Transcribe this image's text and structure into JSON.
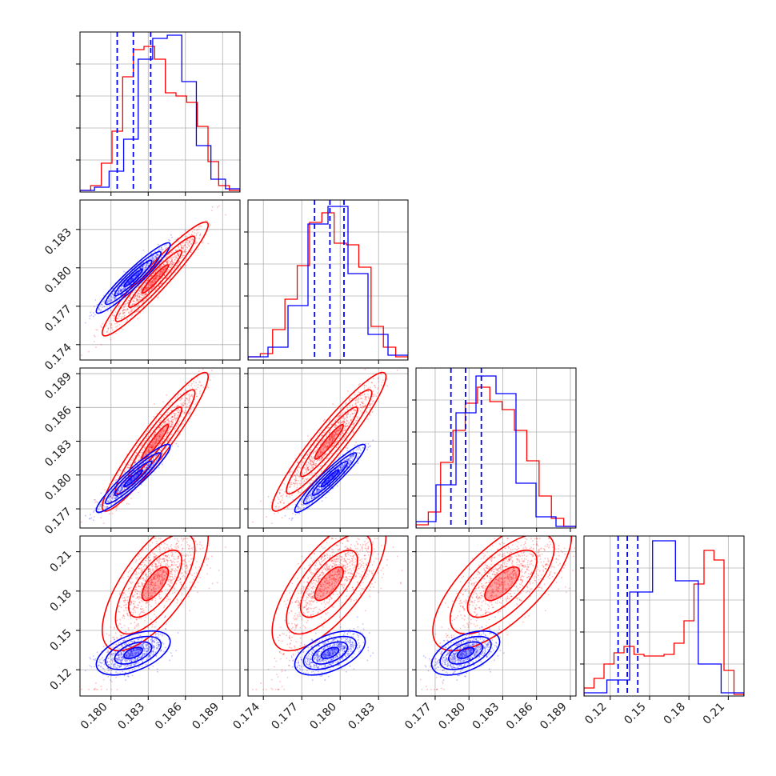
{
  "colors": {
    "series_a": "#ff0000",
    "series_b": "#0000ff",
    "grid": "#b0b0b0",
    "frame": "#000000"
  },
  "chart_data": {
    "type": "scatter",
    "subtype": "corner-plot",
    "grid": true,
    "n_params": 4,
    "series": [
      {
        "color": "#ff0000",
        "means": [
          0.1836,
          0.1792,
          0.183,
          0.185
        ],
        "sds": [
          0.0018,
          0.0019,
          0.0026,
          0.028
        ]
      },
      {
        "color": "#0000ff",
        "means": [
          0.1818,
          0.1792,
          0.1797,
          0.133
        ],
        "sds": [
          0.0012,
          0.0011,
          0.0012,
          0.007
        ]
      }
    ],
    "quantile_lines": [
      [
        0.1805,
        0.1818,
        0.1832
      ],
      [
        0.178,
        0.1792,
        0.1803
      ],
      [
        0.1784,
        0.1797,
        0.1811
      ],
      [
        0.126,
        0.133,
        0.141
      ]
    ],
    "axis_ranges": [
      [
        0.1775,
        0.1904
      ],
      [
        0.1728,
        0.1853
      ],
      [
        0.1753,
        0.1895
      ],
      [
        0.1,
        0.222
      ]
    ],
    "ticks": [
      [
        "0.180",
        "0.183",
        "0.186",
        "0.189"
      ],
      [
        "0.174",
        "0.177",
        "0.180",
        "0.183"
      ],
      [
        "0.177",
        "0.180",
        "0.183",
        "0.186",
        "0.189"
      ],
      [
        "0.12",
        "0.15",
        "0.18",
        "0.21"
      ]
    ],
    "hist_red": [
      [
        0.01,
        0.04,
        0.18,
        0.38,
        0.72,
        0.89,
        0.91,
        0.83,
        0.62,
        0.6,
        0.56,
        0.41,
        0.19,
        0.04,
        0.01
      ],
      [
        0.02,
        0.04,
        0.19,
        0.38,
        0.59,
        0.86,
        0.92,
        0.73,
        0.72,
        0.58,
        0.21,
        0.08,
        0.02
      ],
      [
        0.02,
        0.1,
        0.41,
        0.61,
        0.78,
        0.88,
        0.79,
        0.74,
        0.61,
        0.42,
        0.2,
        0.06,
        0.01
      ],
      [
        0.05,
        0.11,
        0.2,
        0.27,
        0.31,
        0.26,
        0.25,
        0.25,
        0.26,
        0.33,
        0.47,
        0.7,
        0.91,
        0.85,
        0.16,
        0.01
      ]
    ],
    "hist_blue": [
      [
        0.01,
        0.03,
        0.13,
        0.33,
        0.83,
        0.96,
        0.98,
        0.69,
        0.29,
        0.08,
        0.02
      ],
      [
        0.02,
        0.08,
        0.34,
        0.85,
        0.96,
        0.54,
        0.16,
        0.03
      ],
      [
        0.04,
        0.27,
        0.72,
        0.95,
        0.84,
        0.28,
        0.07,
        0.01
      ],
      [
        0.02,
        0.1,
        0.65,
        0.97,
        0.72,
        0.2,
        0.02
      ]
    ]
  }
}
